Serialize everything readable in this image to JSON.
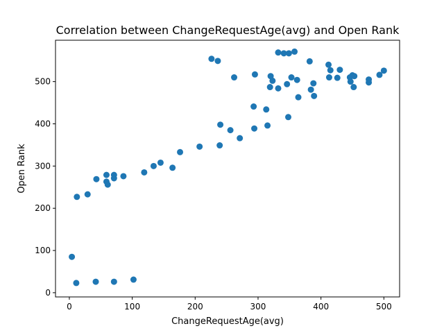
{
  "chart_data": {
    "type": "scatter",
    "title": "Correlation between ChangeRequestAge(avg) and Open Rank",
    "xlabel": "ChangeRequestAge(avg)",
    "ylabel": "Open Rank",
    "xlim": [
      -22,
      525
    ],
    "ylim": [
      -10,
      598
    ],
    "x_ticks": [
      0,
      100,
      200,
      300,
      400,
      500
    ],
    "y_ticks": [
      0,
      100,
      200,
      300,
      400,
      500
    ],
    "grid": false,
    "legend": "none",
    "marker_color": "#1f77b4",
    "series": [
      {
        "points": [
          [
            4,
            85
          ],
          [
            11,
            23
          ],
          [
            42,
            26
          ],
          [
            71,
            26
          ],
          [
            102,
            31
          ],
          [
            12,
            227
          ],
          [
            29,
            233
          ],
          [
            43,
            269
          ],
          [
            59,
            263
          ],
          [
            59,
            279
          ],
          [
            61,
            256
          ],
          [
            71,
            279
          ],
          [
            71,
            271
          ],
          [
            86,
            276
          ],
          [
            119,
            285
          ],
          [
            134,
            300
          ],
          [
            145,
            308
          ],
          [
            164,
            296
          ],
          [
            176,
            333
          ],
          [
            207,
            346
          ],
          [
            239,
            349
          ],
          [
            240,
            398
          ],
          [
            256,
            385
          ],
          [
            271,
            366
          ],
          [
            293,
            441
          ],
          [
            294,
            389
          ],
          [
            313,
            434
          ],
          [
            315,
            396
          ],
          [
            348,
            416
          ],
          [
            226,
            554
          ],
          [
            236,
            549
          ],
          [
            262,
            510
          ],
          [
            295,
            517
          ],
          [
            319,
            487
          ],
          [
            320,
            513
          ],
          [
            323,
            502
          ],
          [
            332,
            484
          ],
          [
            332,
            569
          ],
          [
            341,
            567
          ],
          [
            346,
            494
          ],
          [
            349,
            567
          ],
          [
            353,
            510
          ],
          [
            358,
            571
          ],
          [
            362,
            504
          ],
          [
            364,
            463
          ],
          [
            382,
            548
          ],
          [
            384,
            481
          ],
          [
            388,
            496
          ],
          [
            389,
            466
          ],
          [
            412,
            540
          ],
          [
            413,
            510
          ],
          [
            415,
            527
          ],
          [
            426,
            509
          ],
          [
            430,
            528
          ],
          [
            446,
            510
          ],
          [
            447,
            500
          ],
          [
            450,
            515
          ],
          [
            452,
            487
          ],
          [
            453,
            513
          ],
          [
            476,
            505
          ],
          [
            476,
            498
          ],
          [
            493,
            516
          ],
          [
            500,
            526
          ]
        ]
      }
    ]
  }
}
